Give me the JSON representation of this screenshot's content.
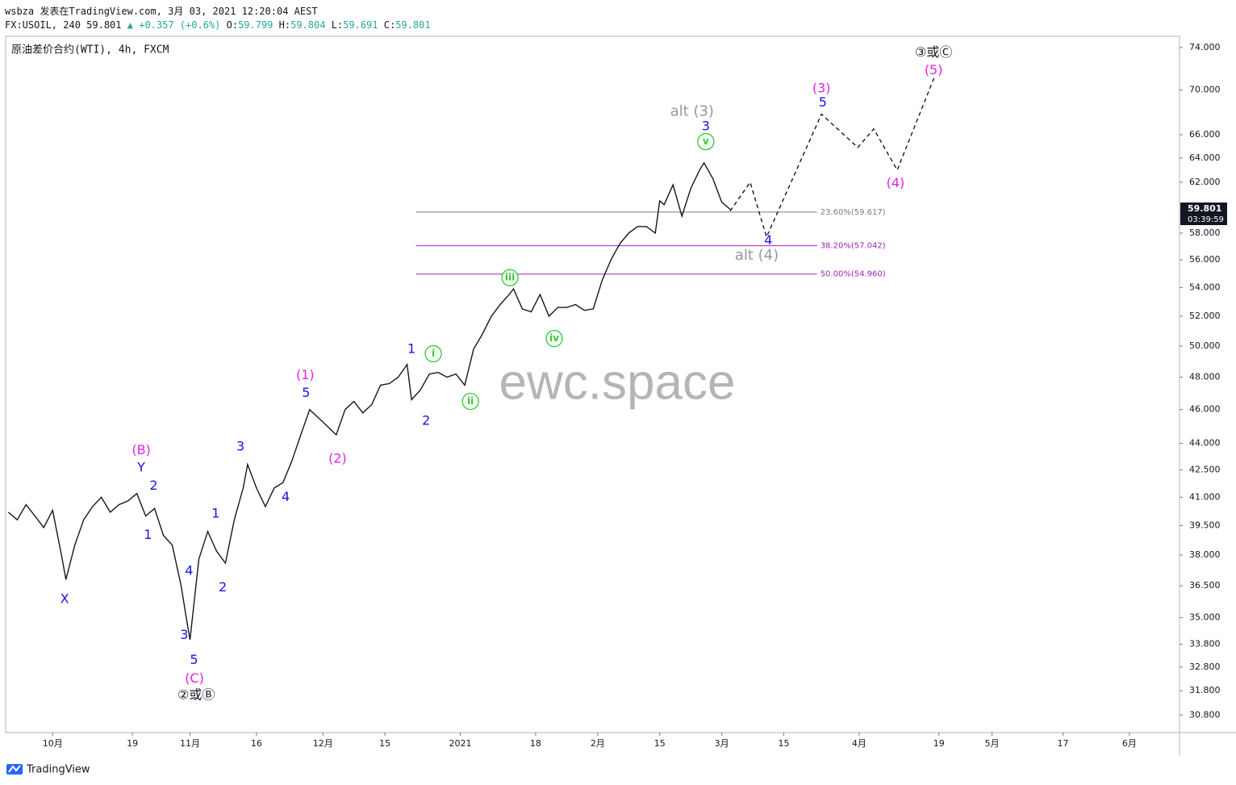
{
  "header": {
    "line1": "wsbza 发表在TradingView.com, 3月 03, 2021 12:20:04 AEST",
    "symbol": "FX:USOIL, 240",
    "last": "59.801",
    "change": "+0.357 (+0.6%)",
    "ohlc": [
      {
        "key": "O:",
        "value": "59.799"
      },
      {
        "key": "H:",
        "value": "59.804"
      },
      {
        "key": "L:",
        "value": "59.691"
      },
      {
        "key": "C:",
        "value": "59.801"
      }
    ],
    "instrument": "原油差价合约(WTI), 4h, FXCM"
  },
  "watermark": "ewc.space",
  "footer": "TradingView",
  "chart_data": {
    "type": "line",
    "scale": "log",
    "grid": false,
    "x": [
      -10,
      -8,
      -6,
      -4,
      -2,
      0,
      2,
      3,
      5,
      7,
      9,
      11,
      13,
      15,
      17,
      19,
      21,
      23,
      25,
      27,
      29,
      30,
      31,
      33,
      35,
      37,
      39,
      41,
      43,
      44,
      46,
      48,
      50,
      52,
      54,
      56,
      58,
      60,
      62,
      64,
      66,
      68,
      70,
      72,
      74,
      76,
      78,
      80,
      81,
      83,
      85,
      87,
      89,
      91,
      93,
      95,
      97,
      99,
      101,
      103,
      104,
      106,
      108,
      110,
      112,
      114,
      116,
      118,
      120,
      122,
      124,
      126,
      128,
      130,
      132,
      134,
      136,
      137,
      138,
      139,
      140,
      142,
      144,
      146,
      147,
      149,
      151,
      153
    ],
    "series": [
      {
        "color": "#131722",
        "values": [
          40.2,
          39.8,
          40.6,
          40.0,
          39.4,
          40.3,
          38.0,
          36.8,
          38.5,
          39.8,
          40.5,
          41.0,
          40.2,
          40.6,
          40.8,
          41.2,
          40.0,
          40.4,
          39.0,
          38.5,
          36.5,
          35.2,
          34.0,
          37.8,
          39.2,
          38.2,
          37.6,
          39.8,
          41.5,
          42.8,
          41.5,
          40.5,
          41.5,
          41.8,
          43.0,
          44.5,
          46.0,
          45.5,
          45.0,
          44.5,
          46.0,
          46.5,
          45.8,
          46.3,
          47.5,
          47.6,
          48.0,
          48.8,
          46.6,
          47.2,
          48.2,
          48.3,
          48.0,
          48.2,
          47.5,
          49.8,
          50.8,
          52.0,
          52.8,
          53.5,
          53.9,
          52.5,
          52.3,
          53.5,
          52.0,
          52.6,
          52.6,
          52.8,
          52.4,
          52.5,
          54.5,
          56.0,
          57.2,
          58.0,
          58.5,
          58.5,
          58.0,
          60.5,
          60.2,
          61.0,
          61.8,
          59.3,
          61.5,
          63.0,
          63.6,
          62.3,
          60.4,
          59.8
        ]
      }
    ],
    "xlim": [
      -10.6,
      254.3
    ],
    "ylim": [
      30.1,
      75.1
    ],
    "xticks": [
      {
        "value": 0,
        "label": "10月"
      },
      {
        "value": 18,
        "label": "19"
      },
      {
        "value": 31,
        "label": "11月"
      },
      {
        "value": 46,
        "label": "16"
      },
      {
        "value": 61,
        "label": "12月"
      },
      {
        "value": 75,
        "label": "15"
      },
      {
        "value": 92,
        "label": "2021"
      },
      {
        "value": 109,
        "label": "18"
      },
      {
        "value": 123,
        "label": "2月"
      },
      {
        "value": 137,
        "label": "15"
      },
      {
        "value": 151,
        "label": "3月"
      },
      {
        "value": 165,
        "label": "15"
      },
      {
        "value": 182,
        "label": "4月"
      },
      {
        "value": 200,
        "label": "19"
      },
      {
        "value": 212,
        "label": "5月"
      },
      {
        "value": 228,
        "label": "17"
      },
      {
        "value": 243,
        "label": "6月"
      }
    ],
    "yticks": [
      {
        "value": 74,
        "label": "74.000"
      },
      {
        "value": 70,
        "label": "70.000"
      },
      {
        "value": 66,
        "label": "66.000"
      },
      {
        "value": 64,
        "label": "64.000"
      },
      {
        "value": 62,
        "label": "62.000"
      },
      {
        "value": 58,
        "label": "58.000"
      },
      {
        "value": 56,
        "label": "56.000"
      },
      {
        "value": 54,
        "label": "54.000"
      },
      {
        "value": 52,
        "label": "52.000"
      },
      {
        "value": 50,
        "label": "50.000"
      },
      {
        "value": 48,
        "label": "48.000"
      },
      {
        "value": 46,
        "label": "46.000"
      },
      {
        "value": 44,
        "label": "44.000"
      },
      {
        "value": 42.5,
        "label": "42.500"
      },
      {
        "value": 41,
        "label": "41.000"
      },
      {
        "value": 39.5,
        "label": "39.500"
      },
      {
        "value": 38,
        "label": "38.000"
      },
      {
        "value": 36.5,
        "label": "36.500"
      },
      {
        "value": 35,
        "label": "35.000"
      },
      {
        "value": 33.8,
        "label": "33.800"
      },
      {
        "value": 32.8,
        "label": "32.800"
      },
      {
        "value": 31.8,
        "label": "31.800"
      },
      {
        "value": 30.8,
        "label": "30.800"
      }
    ],
    "last_price": 59.801,
    "countdown": "03:39:59",
    "fib": {
      "x": [
        82,
        172.5
      ],
      "levels": [
        {
          "value": 59.617,
          "label": "23.60%(59.617)",
          "color": "#787b86"
        },
        {
          "value": 57.042,
          "label": "38.20%(57.042)",
          "color": "#9c27b0"
        },
        {
          "value": 54.96,
          "label": "50.00%(54.960)",
          "color": "#9c27b0"
        }
      ]
    },
    "projection": {
      "color": "#131722",
      "x": [
        152.9,
        157.4,
        161.1,
        173.5,
        181.7,
        185.3,
        190.6,
        198.9
      ],
      "values": [
        59.7,
        62.0,
        57.7,
        67.8,
        64.9,
        66.5,
        63.0,
        71.1
      ]
    },
    "annotations": [
      {
        "text": "X",
        "x": 2.7,
        "y": 35.85,
        "color": "#1515e6"
      },
      {
        "text": "Y",
        "x": 20,
        "y": 42.6,
        "color": "#1515e6"
      },
      {
        "text": "(B)",
        "x": 20,
        "y": 43.6,
        "color": "#e61ee6"
      },
      {
        "text": "2",
        "x": 22.8,
        "y": 41.6,
        "color": "#1515e6"
      },
      {
        "text": "1",
        "x": 21.5,
        "y": 39.0,
        "color": "#1515e6"
      },
      {
        "text": "4",
        "x": 30.8,
        "y": 37.2,
        "color": "#1515e6"
      },
      {
        "text": "3",
        "x": 29.7,
        "y": 34.2,
        "color": "#1515e6"
      },
      {
        "text": "5",
        "x": 31.9,
        "y": 33.1,
        "color": "#1515e6"
      },
      {
        "text": "(C)",
        "x": 32,
        "y": 32.3,
        "color": "#e61ee6"
      },
      {
        "text": "1",
        "x": 36.8,
        "y": 40.1,
        "color": "#1515e6"
      },
      {
        "text": "2",
        "x": 38.4,
        "y": 36.4,
        "color": "#1515e6"
      },
      {
        "text": "3",
        "x": 42.4,
        "y": 43.8,
        "color": "#1515e6"
      },
      {
        "text": "4",
        "x": 52.6,
        "y": 41.0,
        "color": "#1515e6"
      },
      {
        "text": "5",
        "x": 57.2,
        "y": 47.0,
        "color": "#1515e6"
      },
      {
        "text": "(1)",
        "x": 57,
        "y": 48.1,
        "color": "#e61ee6"
      },
      {
        "text": "(2)",
        "x": 64.3,
        "y": 43.1,
        "color": "#e61ee6"
      },
      {
        "text": "1",
        "x": 81,
        "y": 49.8,
        "color": "#1515e6"
      },
      {
        "text": "2",
        "x": 84.3,
        "y": 45.3,
        "color": "#1515e6"
      },
      {
        "text": "i",
        "x": 85.9,
        "y": 49.5,
        "color": "#2ecc2e",
        "circle": true
      },
      {
        "text": "ii",
        "x": 94.3,
        "y": 46.5,
        "color": "#2ecc2e",
        "circle": true
      },
      {
        "text": "iii",
        "x": 103.2,
        "y": 54.7,
        "color": "#2ecc2e",
        "circle": true
      },
      {
        "text": "iv",
        "x": 113.2,
        "y": 50.5,
        "color": "#2ecc2e",
        "circle": true
      },
      {
        "text": "v",
        "x": 147.4,
        "y": 65.4,
        "color": "#2ecc2e",
        "circle": true
      },
      {
        "text": "3",
        "x": 147.4,
        "y": 66.7,
        "color": "#1515e6"
      },
      {
        "text": "alt (3)",
        "x": 144.3,
        "y": 68.0,
        "color": "#9598a1"
      },
      {
        "text": "4",
        "x": 161.5,
        "y": 57.4,
        "color": "#1515e6"
      },
      {
        "text": "alt (4)",
        "x": 158.9,
        "y": 56.3,
        "color": "#9598a1"
      },
      {
        "text": "5",
        "x": 173.8,
        "y": 68.8,
        "color": "#1515e6"
      },
      {
        "text": "(3)",
        "x": 173.5,
        "y": 70.1,
        "color": "#e61ee6"
      },
      {
        "text": "(4)",
        "x": 190.2,
        "y": 61.9,
        "color": "#e61ee6"
      },
      {
        "text": "(5)",
        "x": 198.8,
        "y": 71.8,
        "color": "#e61ee6"
      },
      {
        "text": "③或Ⓒ",
        "x": 198.8,
        "y": 73.5,
        "color": "#131722"
      },
      {
        "text": "②或Ⓑ",
        "x": 32.4,
        "y": 31.6,
        "color": "#131722"
      }
    ]
  }
}
